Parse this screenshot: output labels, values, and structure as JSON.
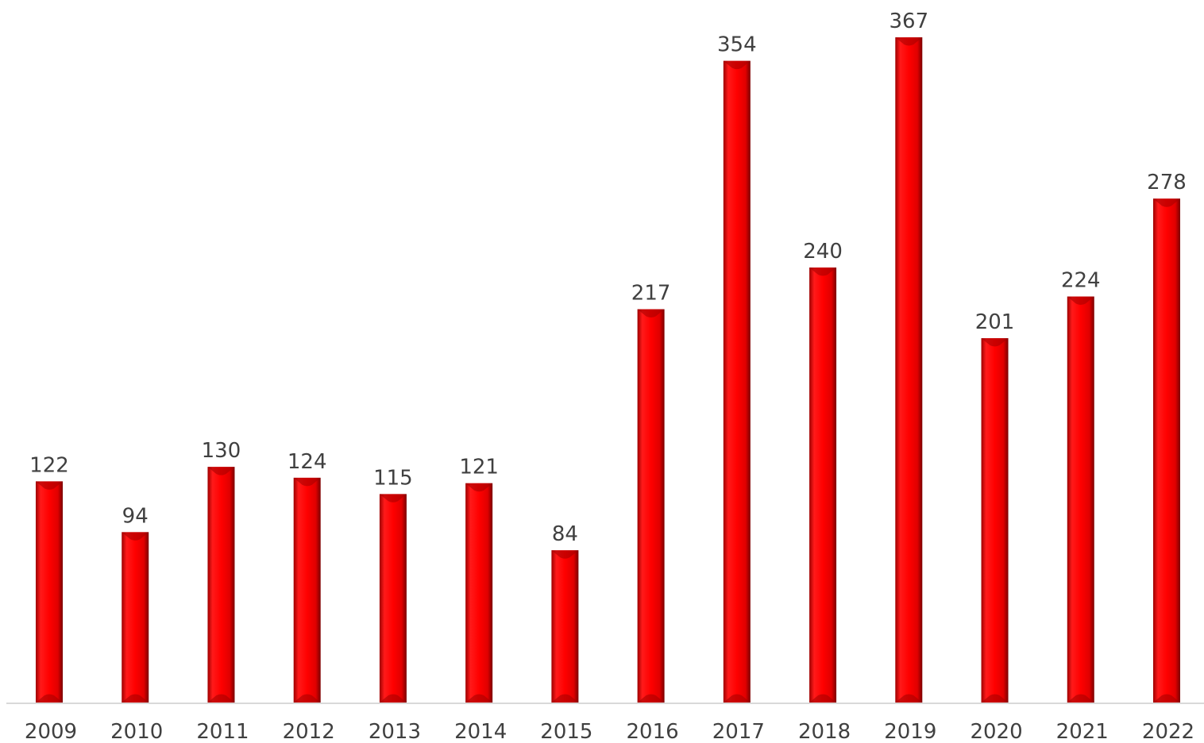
{
  "chart_data": {
    "type": "bar",
    "title": "",
    "xlabel": "",
    "ylabel": "",
    "categories": [
      "2009",
      "2010",
      "2011",
      "2012",
      "2013",
      "2014",
      "2015",
      "2016",
      "2017",
      "2018",
      "2019",
      "2020",
      "2021",
      "2022"
    ],
    "values": [
      122,
      94,
      130,
      124,
      115,
      121,
      84,
      217,
      354,
      240,
      367,
      201,
      224,
      278
    ],
    "ylim": [
      0,
      367
    ],
    "grid": false,
    "legend": "none",
    "colors": {
      "bar": "#ff0000",
      "bar_dark": "#a00000",
      "bar_light": "#ff4a4a",
      "axis": "#d9d9d9",
      "text": "#404040"
    }
  }
}
